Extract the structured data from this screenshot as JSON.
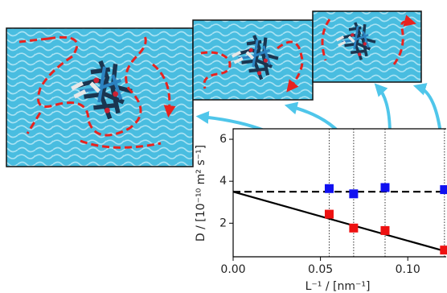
{
  "chart_data": {
    "type": "scatter",
    "xlabel": "L⁻¹ / [nm⁻¹]",
    "ylabel": "D / [10⁻¹⁰ m² s⁻¹]",
    "xlim": [
      0,
      0.122
    ],
    "ylim": [
      0.4,
      6.5
    ],
    "xticks": [
      {
        "value": 0,
        "label": "0.00"
      },
      {
        "value": 0.05,
        "label": "0.05"
      },
      {
        "value": 0.1,
        "label": "0.10"
      }
    ],
    "yticks": [
      2,
      4,
      6
    ],
    "series": [
      {
        "color": "#1010f0",
        "marker": "square",
        "x": [
          0.055,
          0.069,
          0.087,
          0.121
        ],
        "values": [
          3.65,
          3.4,
          3.7,
          3.6
        ]
      },
      {
        "color": "#ee1111",
        "marker": "square",
        "x": [
          0.055,
          0.069,
          0.087,
          0.121
        ],
        "values": [
          2.43,
          1.77,
          1.65,
          0.72
        ]
      }
    ],
    "lines": [
      {
        "color": "#000000",
        "style": "dashed",
        "x": [
          0,
          0.122
        ],
        "values": [
          3.5,
          3.5
        ]
      },
      {
        "color": "#000000",
        "style": "solid",
        "x": [
          0,
          0.122
        ],
        "values": [
          3.5,
          0.65
        ]
      }
    ],
    "guides": true
  }
}
